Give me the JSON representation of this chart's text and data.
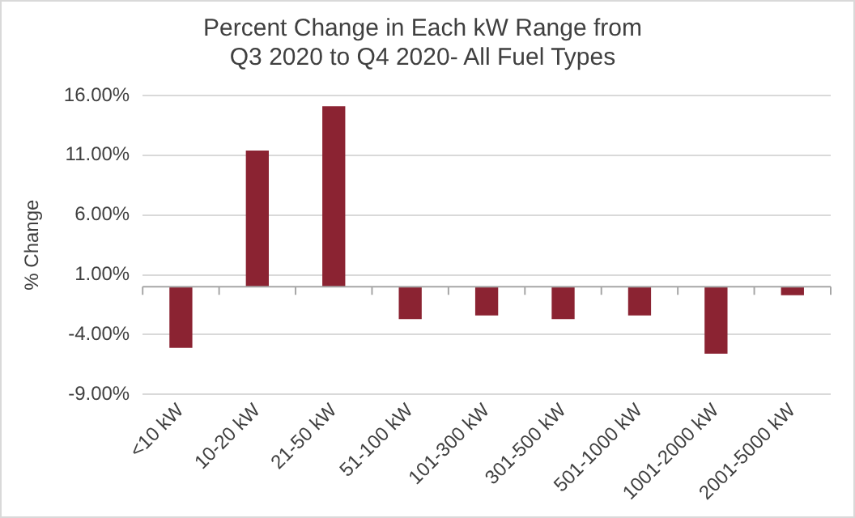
{
  "chart_data": {
    "type": "bar",
    "title": "Percent Change in Each kW Range from\nQ3 2020 to Q4 2020- All Fuel Types",
    "ylabel": "% Change",
    "categories": [
      "<10 kW",
      "10-20 kW",
      "21-50 kW",
      "51-100 kW",
      "101-300 kW",
      "301-500 kW",
      "501-1000 kW",
      "1001-2000 kW",
      "2001-5000 kW"
    ],
    "values": [
      -5.1,
      11.4,
      15.1,
      -2.7,
      -2.4,
      -2.7,
      -2.4,
      -5.6,
      -0.7
    ],
    "color": "#8b2332",
    "ylim": [
      -9,
      16
    ],
    "yticks": [
      {
        "value": -9,
        "label": "-9.00%"
      },
      {
        "value": -4,
        "label": "-4.00%"
      },
      {
        "value": 1,
        "label": "1.00%"
      },
      {
        "value": 6,
        "label": "6.00%"
      },
      {
        "value": 11,
        "label": "11.00%"
      },
      {
        "value": 16,
        "label": "16.00%"
      }
    ],
    "grid": "y",
    "legend": false
  }
}
